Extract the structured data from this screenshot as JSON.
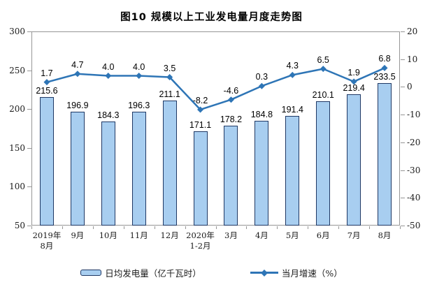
{
  "chart_data": {
    "type": "bar+line",
    "title": "图10 规模以上工业发电量月度走势图",
    "categories": [
      "2019年\n8月",
      "9月",
      "10月",
      "11月",
      "12月",
      "2020年\n1-2月",
      "3月",
      "4月",
      "5月",
      "6月",
      "7月",
      "8月"
    ],
    "series": [
      {
        "name": "日均发电量（亿千瓦时）",
        "type": "bar",
        "axis": "left",
        "values": [
          215.6,
          196.9,
          184.3,
          196.3,
          211.1,
          171.1,
          178.2,
          184.8,
          191.4,
          210.1,
          219.4,
          233.5
        ]
      },
      {
        "name": "当月增速（%）",
        "type": "line",
        "axis": "right",
        "values": [
          1.7,
          4.7,
          4.0,
          4.0,
          3.5,
          -8.2,
          -4.6,
          0.3,
          4.3,
          6.5,
          1.9,
          6.8
        ]
      }
    ],
    "left_axis": {
      "min": 50,
      "max": 300,
      "ticks": [
        300,
        250,
        200,
        150,
        100,
        50
      ]
    },
    "right_axis": {
      "min": -50,
      "max": 20,
      "ticks": [
        20,
        10,
        0,
        -10,
        -20,
        -30,
        -40,
        -50
      ]
    },
    "grid": false,
    "legend_position": "bottom",
    "colors": {
      "bar_fill": "#A8CEF0",
      "bar_border": "#1F3864",
      "line": "#2E75B6",
      "frame": "#969696",
      "text": "#000000"
    }
  }
}
